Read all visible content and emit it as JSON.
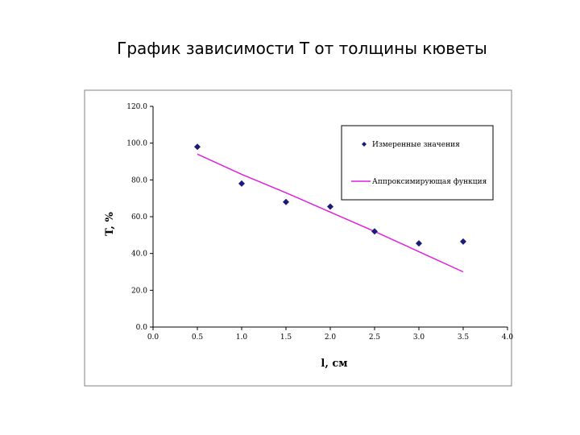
{
  "page": {
    "title": "График зависимости T от толщины кюветы"
  },
  "chart_data": {
    "type": "scatter",
    "title": "График зависимости T от толщины кюветы",
    "xlabel": "l, см",
    "ylabel": "T, %",
    "xlim": [
      0,
      4
    ],
    "ylim": [
      0,
      120
    ],
    "x_ticks": [
      "0.0",
      "0.5",
      "1.0",
      "1.5",
      "2.0",
      "2.5",
      "3.0",
      "3.5",
      "4.0"
    ],
    "y_ticks": [
      "0.0",
      "20.0",
      "40.0",
      "60.0",
      "80.0",
      "100.0",
      "120.0"
    ],
    "grid": false,
    "legend_position": "top-right",
    "series": [
      {
        "name": "Измеренные значения",
        "kind": "scatter",
        "color": "#1a1a7a",
        "points": [
          [
            0.5,
            98
          ],
          [
            1.0,
            78
          ],
          [
            1.5,
            68
          ],
          [
            2.0,
            65.5
          ],
          [
            2.5,
            52
          ],
          [
            3.0,
            45.5
          ],
          [
            3.5,
            46.5
          ]
        ]
      },
      {
        "name": "Аппроксимирующая функция",
        "kind": "line",
        "color": "#e020e0",
        "points": [
          [
            0.5,
            94
          ],
          [
            1.0,
            83
          ],
          [
            1.5,
            73
          ],
          [
            2.0,
            62.5
          ],
          [
            2.5,
            52
          ],
          [
            3.0,
            41
          ],
          [
            3.5,
            30
          ]
        ]
      }
    ]
  }
}
